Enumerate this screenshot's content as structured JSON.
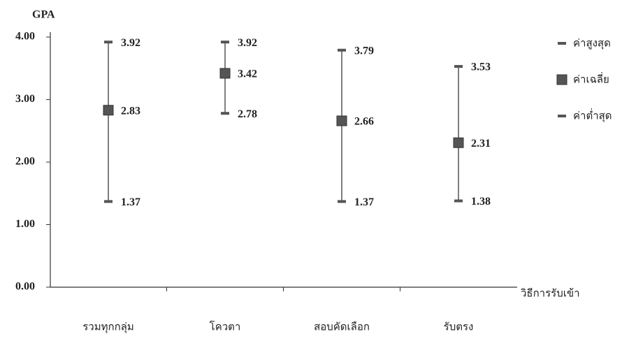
{
  "chart_data": {
    "type": "high-low-average",
    "y_label": "GPA",
    "x_label": "วิธีการรับเข้า",
    "categories": [
      "รวมทุกกลุ่ม",
      "โควตา",
      "สอบคัดเลือก",
      "รับตรง"
    ],
    "series": [
      {
        "name": "ค่าสูงสุด",
        "color": "#555555",
        "values": [
          3.92,
          3.92,
          3.79,
          3.53
        ]
      },
      {
        "name": "ค่าเฉลี่ย",
        "color": "#555555",
        "values": [
          2.83,
          3.42,
          2.66,
          2.31
        ]
      },
      {
        "name": "ค่าต่ำสุด",
        "color": "#555555",
        "values": [
          1.37,
          2.78,
          1.37,
          1.38
        ]
      }
    ],
    "ylim": [
      0,
      4
    ],
    "yticks": [
      {
        "value": 0,
        "label": "0.00"
      },
      {
        "value": 1,
        "label": "1.00"
      },
      {
        "value": 2,
        "label": "2.00"
      },
      {
        "value": 3,
        "label": "3.00"
      },
      {
        "value": 4,
        "label": "4.00"
      }
    ],
    "legend": "right"
  }
}
